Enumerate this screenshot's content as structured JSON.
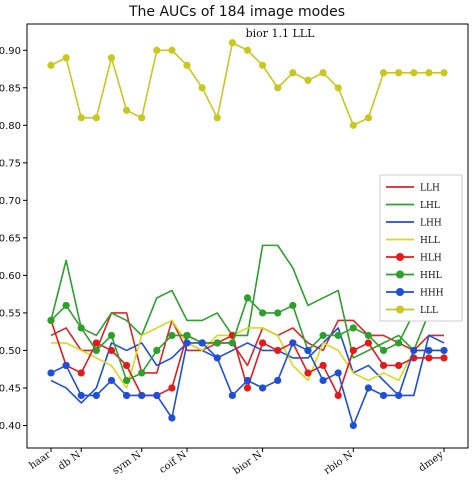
{
  "chart_data": {
    "type": "line",
    "title": "The AUCs of 184 image modes",
    "annotation": "bior 1.1 LLL",
    "xlabel": "",
    "ylabel": "",
    "ylim": [
      0.37,
      0.935
    ],
    "yticks": [
      0.4,
      0.45,
      0.5,
      0.55,
      0.6,
      0.65,
      0.7,
      0.75,
      0.8,
      0.85,
      0.9
    ],
    "x": [
      0,
      1,
      2,
      3,
      4,
      5,
      6,
      7,
      8,
      9,
      10,
      11,
      12,
      13,
      14,
      15,
      16,
      17,
      18,
      19,
      20,
      21,
      22,
      23,
      24,
      25,
      26
    ],
    "xticks": [
      {
        "x": 0,
        "label": "haar"
      },
      {
        "x": 2,
        "label": "db N"
      },
      {
        "x": 6,
        "label": "sym N"
      },
      {
        "x": 9,
        "label": "coif N"
      },
      {
        "x": 14,
        "label": "bior N"
      },
      {
        "x": 20,
        "label": "rbio N"
      },
      {
        "x": 26,
        "label": "dmey"
      }
    ],
    "legend_position": "right",
    "series": [
      {
        "name": "LLH",
        "color": "#d62728",
        "marker": false,
        "values": [
          0.52,
          0.53,
          0.5,
          0.5,
          0.55,
          0.55,
          0.47,
          0.47,
          0.54,
          0.5,
          0.5,
          0.51,
          0.51,
          0.48,
          0.53,
          0.52,
          0.53,
          0.51,
          0.5,
          0.54,
          0.54,
          0.52,
          0.52,
          0.51,
          0.5,
          0.52,
          0.52
        ]
      },
      {
        "name": "LHL",
        "color": "#2ca02c",
        "marker": false,
        "values": [
          0.54,
          0.62,
          0.53,
          0.52,
          0.55,
          0.54,
          0.52,
          0.57,
          0.58,
          0.54,
          0.54,
          0.55,
          0.52,
          0.52,
          0.64,
          0.64,
          0.61,
          0.56,
          0.57,
          0.58,
          0.49,
          0.5,
          0.51,
          0.52,
          0.5,
          0.55,
          0.62
        ]
      },
      {
        "name": "LHH",
        "color": "#1f4fd6",
        "marker": false,
        "values": [
          0.46,
          0.45,
          0.43,
          0.45,
          0.51,
          0.5,
          0.51,
          0.48,
          0.49,
          0.51,
          0.5,
          0.49,
          0.5,
          0.51,
          0.5,
          0.5,
          0.49,
          0.49,
          0.51,
          0.53,
          0.47,
          0.48,
          0.46,
          0.44,
          0.44,
          0.52,
          0.51
        ]
      },
      {
        "name": "HLL",
        "color": "#d9d91a",
        "marker": false,
        "values": [
          0.51,
          0.51,
          0.5,
          0.49,
          0.48,
          0.45,
          0.52,
          0.53,
          0.54,
          0.51,
          0.5,
          0.52,
          0.52,
          0.53,
          0.53,
          0.52,
          0.48,
          0.46,
          0.51,
          0.5,
          0.47,
          0.46,
          0.47,
          0.46,
          0.5,
          0.5,
          0.5
        ]
      },
      {
        "name": "HLH",
        "color": "#e31a1c",
        "marker": true,
        "values": [
          0.54,
          0.48,
          0.47,
          0.51,
          0.5,
          0.48,
          0.44,
          0.44,
          0.45,
          0.52,
          0.51,
          0.51,
          0.52,
          0.45,
          0.51,
          0.5,
          0.51,
          0.47,
          0.48,
          0.44,
          0.5,
          0.51,
          0.48,
          0.48,
          0.49,
          0.49,
          0.49
        ]
      },
      {
        "name": "HHL",
        "color": "#2ca02c",
        "marker": true,
        "values": [
          0.54,
          0.56,
          0.53,
          0.5,
          0.52,
          0.46,
          0.47,
          0.5,
          0.52,
          0.52,
          0.51,
          0.51,
          0.51,
          0.57,
          0.55,
          0.55,
          0.56,
          0.5,
          0.52,
          0.52,
          0.53,
          0.52,
          0.5,
          0.51,
          0.55,
          0.58,
          0.6
        ]
      },
      {
        "name": "HHH",
        "color": "#1f4fd6",
        "marker": true,
        "values": [
          0.47,
          0.48,
          0.44,
          0.44,
          0.46,
          0.44,
          0.44,
          0.44,
          0.41,
          0.51,
          0.51,
          0.49,
          0.44,
          0.46,
          0.45,
          0.46,
          0.51,
          0.5,
          0.46,
          0.47,
          0.4,
          0.45,
          0.44,
          0.44,
          0.5,
          0.5,
          0.5
        ]
      },
      {
        "name": "LLL",
        "color": "#c8c81e",
        "marker": true,
        "values": [
          0.88,
          0.89,
          0.81,
          0.81,
          0.89,
          0.82,
          0.81,
          0.9,
          0.9,
          0.88,
          0.85,
          0.81,
          0.91,
          0.9,
          0.88,
          0.85,
          0.87,
          0.86,
          0.87,
          0.85,
          0.8,
          0.81,
          0.87,
          0.87,
          0.87,
          0.87,
          0.87
        ]
      }
    ]
  }
}
